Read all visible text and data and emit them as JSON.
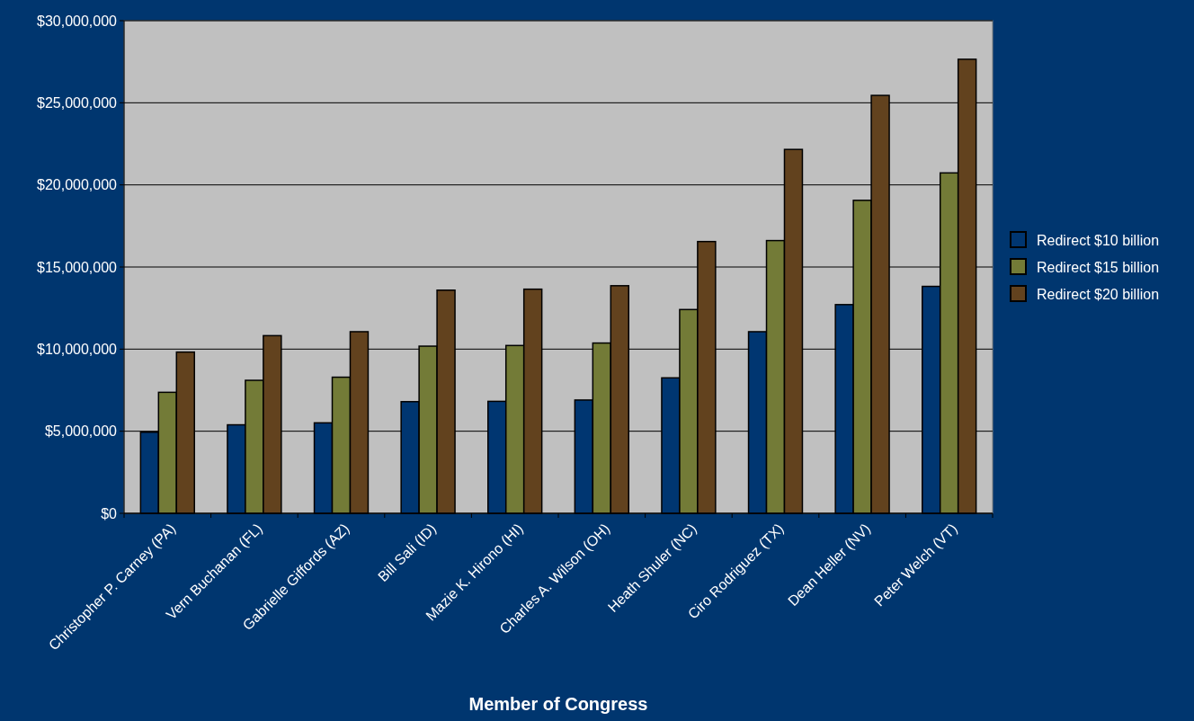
{
  "chart_data": {
    "type": "bar",
    "xlabel": "Member of Congress",
    "categories": [
      "Christopher P. Carney (PA)",
      "Vern Buchanan (FL)",
      "Gabrielle Giffords (AZ)",
      "Bill Sali (ID)",
      "Mazie K. Hirono (HI)",
      "Charles A. Wilson (OH)",
      "Heath Shuler (NC)",
      "Ciro Rodriguez (TX)",
      "Dean Heller (NV)",
      "Peter Welch (VT)"
    ],
    "series": [
      {
        "name": "Redirect $10 billion",
        "color": "#003671",
        "values": [
          4940000,
          5390000,
          5510000,
          6800000,
          6820000,
          6900000,
          8250000,
          11060000,
          12710000,
          13820000
        ]
      },
      {
        "name": "Redirect $15 billion",
        "color": "#737b37",
        "values": [
          7370000,
          8100000,
          8290000,
          10180000,
          10220000,
          10370000,
          12410000,
          16610000,
          19060000,
          20730000
        ]
      },
      {
        "name": "Redirect $20 billion",
        "color": "#62421e",
        "values": [
          9820000,
          10820000,
          11060000,
          13590000,
          13650000,
          13860000,
          16550000,
          22160000,
          25450000,
          27650000
        ]
      }
    ],
    "ylim": [
      0,
      30000000
    ],
    "yticks": [
      {
        "value": 0,
        "label": "$0"
      },
      {
        "value": 5000000,
        "label": "$5,000,000"
      },
      {
        "value": 10000000,
        "label": "$10,000,000"
      },
      {
        "value": 15000000,
        "label": "$15,000,000"
      },
      {
        "value": 20000000,
        "label": "$20,000,000"
      },
      {
        "value": 25000000,
        "label": "$25,000,000"
      },
      {
        "value": 30000000,
        "label": "$30,000,000"
      }
    ],
    "grid": "y",
    "legend": "right"
  }
}
